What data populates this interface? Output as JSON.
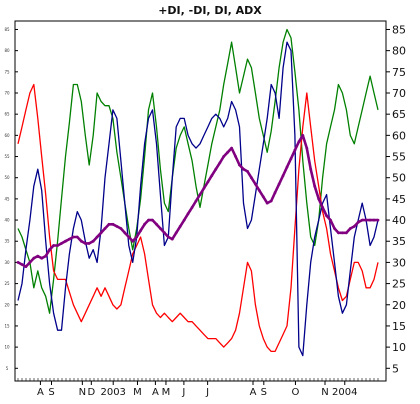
{
  "chart_data": {
    "type": "line",
    "title": "+DI, -DI, DI, ADX",
    "xlabel": "",
    "ylabel": "",
    "ylim": [
      2,
      87
    ],
    "yticks": [
      5,
      10,
      15,
      20,
      25,
      30,
      35,
      40,
      45,
      50,
      55,
      60,
      65,
      70,
      75,
      80,
      85
    ],
    "grid": false,
    "xticks": [
      {
        "label": "A",
        "x": 0.085
      },
      {
        "label": "S",
        "x": 0.127
      },
      {
        "label": "N",
        "x": 0.244
      },
      {
        "label": "D",
        "x": 0.278
      },
      {
        "label": "2003",
        "x": 0.361
      },
      {
        "label": "M",
        "x": 0.453
      },
      {
        "label": "A",
        "x": 0.521
      },
      {
        "label": "M",
        "x": 0.561
      },
      {
        "label": "J",
        "x": 0.629
      },
      {
        "label": "J",
        "x": 0.719
      },
      {
        "label": "A",
        "x": 0.891
      },
      {
        "label": "S",
        "x": 0.932
      },
      {
        "label": "O",
        "x": 1.052
      },
      {
        "label": "N",
        "x": 1.164
      },
      {
        "label": "2004",
        "x": 1.239
      }
    ],
    "series": [
      {
        "color": "#008000",
        "x": [
          0.0,
          0.015,
          0.03,
          0.045,
          0.06,
          0.075,
          0.09,
          0.105,
          0.12,
          0.135,
          0.15,
          0.165,
          0.18,
          0.195,
          0.21,
          0.225,
          0.24,
          0.255,
          0.27,
          0.285,
          0.3,
          0.315,
          0.33,
          0.345,
          0.36,
          0.375,
          0.39,
          0.405,
          0.42,
          0.435,
          0.45,
          0.465,
          0.48,
          0.495,
          0.51,
          0.525,
          0.54,
          0.555,
          0.57,
          0.585,
          0.6,
          0.615,
          0.63,
          0.645,
          0.66,
          0.675,
          0.69,
          0.705,
          0.72,
          0.735,
          0.75,
          0.765,
          0.78,
          0.795,
          0.81,
          0.825,
          0.84,
          0.855,
          0.87,
          0.885,
          0.9,
          0.915,
          0.93,
          0.945,
          0.96,
          0.975,
          0.99,
          1.005,
          1.02,
          1.035,
          1.05,
          1.065,
          1.08,
          1.095,
          1.11,
          1.125,
          1.14,
          1.155,
          1.17,
          1.185,
          1.2,
          1.215,
          1.23,
          1.245,
          1.26,
          1.275,
          1.29,
          1.305,
          1.32,
          1.335,
          1.35,
          1.365
        ],
        "values": [
          38,
          36,
          33,
          30,
          24,
          28,
          24,
          22,
          18,
          26,
          35,
          45,
          55,
          63,
          72,
          72,
          68,
          60,
          53,
          60,
          70,
          68,
          67,
          67,
          64,
          56,
          50,
          44,
          38,
          33,
          38,
          45,
          55,
          66,
          70,
          62,
          52,
          44,
          42,
          50,
          57,
          60,
          62,
          58,
          54,
          48,
          43,
          48,
          53,
          58,
          62,
          66,
          72,
          77,
          82,
          76,
          70,
          74,
          78,
          76,
          70,
          64,
          60,
          56,
          61,
          68,
          76,
          82,
          85,
          83,
          75,
          66,
          54,
          44,
          36,
          34,
          40,
          50,
          58,
          62,
          66,
          72,
          70,
          66,
          60,
          58,
          62,
          66,
          70,
          74,
          70,
          66
        ]
      },
      {
        "color": "#ff0000",
        "x": [
          0.0,
          0.015,
          0.03,
          0.045,
          0.06,
          0.075,
          0.09,
          0.105,
          0.12,
          0.135,
          0.15,
          0.165,
          0.18,
          0.195,
          0.21,
          0.225,
          0.24,
          0.255,
          0.27,
          0.285,
          0.3,
          0.315,
          0.33,
          0.345,
          0.36,
          0.375,
          0.39,
          0.405,
          0.42,
          0.435,
          0.45,
          0.465,
          0.48,
          0.495,
          0.51,
          0.525,
          0.54,
          0.555,
          0.57,
          0.585,
          0.6,
          0.615,
          0.63,
          0.645,
          0.66,
          0.675,
          0.69,
          0.705,
          0.72,
          0.735,
          0.75,
          0.765,
          0.78,
          0.795,
          0.81,
          0.825,
          0.84,
          0.855,
          0.87,
          0.885,
          0.9,
          0.915,
          0.93,
          0.945,
          0.96,
          0.975,
          0.99,
          1.005,
          1.02,
          1.035,
          1.05,
          1.065,
          1.08,
          1.095,
          1.11,
          1.125,
          1.14,
          1.155,
          1.17,
          1.185,
          1.2,
          1.215,
          1.23,
          1.245,
          1.26,
          1.275,
          1.29,
          1.305,
          1.32,
          1.335,
          1.35,
          1.365
        ],
        "values": [
          58,
          62,
          66,
          70,
          72,
          64,
          55,
          46,
          36,
          28,
          26,
          26,
          26,
          23,
          20,
          18,
          16,
          18,
          20,
          22,
          24,
          22,
          24,
          22,
          20,
          19,
          20,
          24,
          28,
          32,
          34,
          36,
          32,
          26,
          20,
          18,
          17,
          18,
          17,
          16,
          17,
          18,
          17,
          16,
          16,
          15,
          14,
          13,
          12,
          12,
          12,
          11,
          10,
          11,
          12,
          14,
          18,
          24,
          30,
          28,
          20,
          15,
          12,
          10,
          9,
          9,
          11,
          13,
          15,
          24,
          38,
          52,
          62,
          70,
          62,
          54,
          48,
          42,
          38,
          32,
          28,
          24,
          21,
          22,
          26,
          30,
          30,
          28,
          24,
          24,
          26,
          30
        ]
      },
      {
        "color": "#00008b",
        "x": [
          0.0,
          0.015,
          0.03,
          0.045,
          0.06,
          0.075,
          0.09,
          0.105,
          0.12,
          0.135,
          0.15,
          0.165,
          0.18,
          0.195,
          0.21,
          0.225,
          0.24,
          0.255,
          0.27,
          0.285,
          0.3,
          0.315,
          0.33,
          0.345,
          0.36,
          0.375,
          0.39,
          0.405,
          0.42,
          0.435,
          0.45,
          0.465,
          0.48,
          0.495,
          0.51,
          0.525,
          0.54,
          0.555,
          0.57,
          0.585,
          0.6,
          0.615,
          0.63,
          0.645,
          0.66,
          0.675,
          0.69,
          0.705,
          0.72,
          0.735,
          0.75,
          0.765,
          0.78,
          0.795,
          0.81,
          0.825,
          0.84,
          0.855,
          0.87,
          0.885,
          0.9,
          0.915,
          0.93,
          0.945,
          0.96,
          0.975,
          0.99,
          1.005,
          1.02,
          1.035,
          1.05,
          1.065,
          1.08,
          1.095,
          1.11,
          1.125,
          1.14,
          1.155,
          1.17,
          1.185,
          1.2,
          1.215,
          1.23,
          1.245,
          1.26,
          1.275,
          1.29,
          1.305,
          1.32,
          1.335,
          1.35,
          1.365
        ],
        "values": [
          21,
          25,
          33,
          40,
          48,
          52,
          47,
          35,
          25,
          18,
          14,
          14,
          24,
          32,
          38,
          42,
          40,
          35,
          31,
          33,
          30,
          38,
          50,
          58,
          66,
          64,
          54,
          44,
          34,
          30,
          36,
          48,
          58,
          64,
          66,
          58,
          46,
          34,
          36,
          50,
          62,
          64,
          64,
          60,
          58,
          57,
          58,
          60,
          62,
          64,
          65,
          64,
          62,
          64,
          68,
          66,
          62,
          44,
          38,
          40,
          46,
          52,
          58,
          64,
          72,
          70,
          64,
          76,
          82,
          80,
          60,
          10,
          8,
          20,
          30,
          36,
          40,
          44,
          46,
          38,
          30,
          22,
          18,
          20,
          28,
          36,
          40,
          44,
          40,
          34,
          36,
          40
        ]
      },
      {
        "color": "#800080",
        "x": [
          0.0,
          0.015,
          0.03,
          0.045,
          0.06,
          0.075,
          0.09,
          0.105,
          0.12,
          0.135,
          0.15,
          0.165,
          0.18,
          0.195,
          0.21,
          0.225,
          0.24,
          0.255,
          0.27,
          0.285,
          0.3,
          0.315,
          0.33,
          0.345,
          0.36,
          0.375,
          0.39,
          0.405,
          0.42,
          0.435,
          0.45,
          0.465,
          0.48,
          0.495,
          0.51,
          0.525,
          0.54,
          0.555,
          0.57,
          0.585,
          0.6,
          0.615,
          0.63,
          0.645,
          0.66,
          0.675,
          0.69,
          0.705,
          0.72,
          0.735,
          0.75,
          0.765,
          0.78,
          0.795,
          0.81,
          0.825,
          0.84,
          0.855,
          0.87,
          0.885,
          0.9,
          0.915,
          0.93,
          0.945,
          0.96,
          0.975,
          0.99,
          1.005,
          1.02,
          1.035,
          1.05,
          1.065,
          1.08,
          1.095,
          1.11,
          1.125,
          1.14,
          1.155,
          1.17,
          1.185,
          1.2,
          1.215,
          1.23,
          1.245,
          1.26,
          1.275,
          1.29,
          1.305,
          1.32,
          1.335,
          1.35,
          1.365
        ],
        "values": [
          30,
          29.5,
          29,
          30,
          31,
          31.5,
          31,
          31.5,
          33,
          34,
          34,
          34.5,
          35,
          35.5,
          36,
          36,
          35,
          34.5,
          34.5,
          35,
          36,
          37,
          38,
          39,
          39,
          38.5,
          38,
          37,
          36,
          35,
          36,
          37.5,
          39,
          40,
          40,
          39,
          38,
          37,
          36,
          35.5,
          37,
          38.5,
          40,
          41.5,
          43,
          44.5,
          46,
          47.5,
          49,
          50.5,
          52,
          53.5,
          55,
          56,
          57,
          55,
          53,
          52,
          51.5,
          50,
          48.5,
          47,
          45.5,
          44,
          44.5,
          46.5,
          48.5,
          50.5,
          52.5,
          54.5,
          56.5,
          58.5,
          60,
          57,
          52,
          48,
          45,
          43,
          41,
          40,
          38,
          37,
          37,
          37,
          38,
          38.5,
          39.5,
          40,
          40,
          40,
          40,
          40
        ]
      }
    ]
  }
}
